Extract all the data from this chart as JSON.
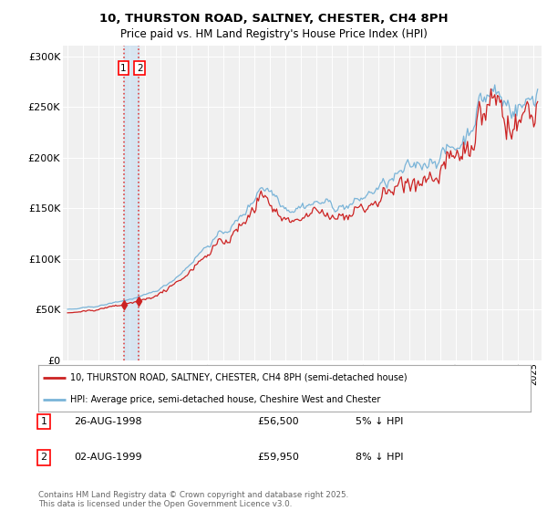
{
  "title_line1": "10, THURSTON ROAD, SALTNEY, CHESTER, CH4 8PH",
  "title_line2": "Price paid vs. HM Land Registry's House Price Index (HPI)",
  "ylim": [
    0,
    310000
  ],
  "yticks": [
    0,
    50000,
    100000,
    150000,
    200000,
    250000,
    300000
  ],
  "ytick_labels": [
    "£0",
    "£50K",
    "£100K",
    "£150K",
    "£200K",
    "£250K",
    "£300K"
  ],
  "hpi_color": "#7ab4d8",
  "price_color": "#cc2222",
  "legend1": "10, THURSTON ROAD, SALTNEY, CHESTER, CH4 8PH (semi-detached house)",
  "legend2": "HPI: Average price, semi-detached house, Cheshire West and Chester",
  "sale1_label": "1",
  "sale1_date": "26-AUG-1998",
  "sale1_price": "£56,500",
  "sale1_hpi": "5% ↓ HPI",
  "sale2_label": "2",
  "sale2_date": "02-AUG-1999",
  "sale2_price": "£59,950",
  "sale2_hpi": "8% ↓ HPI",
  "footer": "Contains HM Land Registry data © Crown copyright and database right 2025.\nThis data is licensed under the Open Government Licence v3.0.",
  "background_color": "#ffffff",
  "plot_bg_color": "#f0f0f0",
  "sale_years": [
    1998.648,
    1999.583
  ],
  "sale_prices": [
    56500,
    59950
  ]
}
